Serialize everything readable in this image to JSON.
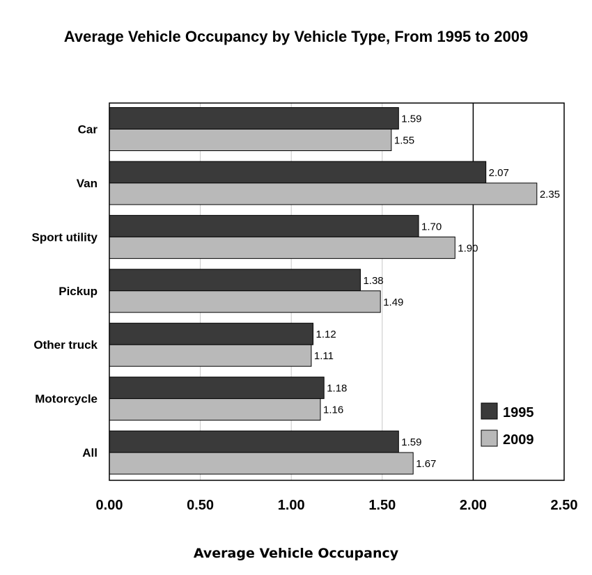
{
  "colors": {
    "series_1995": "#3a3a3a",
    "series_2009": "#b9b9b9",
    "grid_minor": "#c8c8c8",
    "grid_major": "#000000"
  },
  "chart_data": {
    "type": "bar",
    "orientation": "horizontal",
    "title": "Average Vehicle Occupancy by Vehicle Type, From 1995 to 2009",
    "xlabel": "Average Vehicle Occupancy",
    "ylabel": "",
    "categories": [
      "Car",
      "Van",
      "Sport utility",
      "Pickup",
      "Other truck",
      "Motorcycle",
      "All"
    ],
    "series": [
      {
        "name": "1995",
        "values": [
          1.59,
          2.07,
          1.7,
          1.38,
          1.12,
          1.18,
          1.59
        ],
        "labels": [
          "1.59",
          "2.07",
          "1.70",
          "1.38",
          "1.12",
          "1.18",
          "1.59"
        ]
      },
      {
        "name": "2009",
        "values": [
          1.55,
          2.35,
          1.9,
          1.49,
          1.11,
          1.16,
          1.67
        ],
        "labels": [
          "1.55",
          "2.35",
          "1.90",
          "1.49",
          "1.11",
          "1.16",
          "1.67"
        ]
      }
    ],
    "xlim": [
      0,
      2.5
    ],
    "xticks": [
      "0.00",
      "0.50",
      "1.00",
      "1.50",
      "2.00",
      "2.50"
    ],
    "grid": true,
    "legend_position": "bottom-right"
  }
}
